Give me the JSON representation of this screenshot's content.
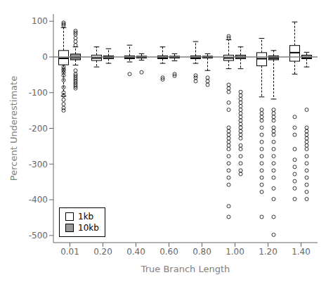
{
  "chart_data": {
    "type": "box",
    "xlabel": "True Branch Length",
    "ylabel": "Percent Underestimate",
    "categories": [
      "0.01",
      "0.20",
      "0.40",
      "0.60",
      "0.80",
      "1.00",
      "1.20",
      "1.40"
    ],
    "ylim": [
      -520,
      120
    ],
    "yticks": [
      100,
      0,
      -100,
      -200,
      -300,
      -400,
      -500
    ],
    "grid": false,
    "legend": "lower left",
    "reference_line": 0,
    "series": [
      {
        "name": "1kb",
        "color": "white",
        "values": [
          {
            "q1": -22,
            "median": -4,
            "q3": 18,
            "whislo": -110,
            "whishi": 82,
            "fliers_below": [
              -120,
              -132,
              -143,
              -150,
              -108,
              -100,
              -85,
              -65,
              -52,
              -44,
              -38,
              -34,
              -28
            ],
            "fliers_above": [
              88,
              92,
              96
            ]
          },
          {
            "q1": -10,
            "median": -3,
            "q3": 5,
            "whislo": -28,
            "whishi": 28,
            "fliers_below": [],
            "fliers_above": []
          },
          {
            "q1": -5,
            "median": -2,
            "q3": 3,
            "whislo": -14,
            "whishi": 33,
            "fliers_below": [
              -48
            ],
            "fliers_above": []
          },
          {
            "q1": -5,
            "median": -2,
            "q3": 3,
            "whislo": -18,
            "whishi": 28,
            "fliers_below": [
              -58,
              -63
            ],
            "fliers_above": []
          },
          {
            "q1": -5,
            "median": -2,
            "q3": 3,
            "whislo": -18,
            "whishi": 43,
            "fliers_below": [
              -52,
              -58,
              -68
            ],
            "fliers_above": []
          },
          {
            "q1": -10,
            "median": -3,
            "q3": 5,
            "whislo": -33,
            "whishi": 48,
            "fliers_below": [
              -78,
              -88,
              -98,
              -128,
              -148,
              -198,
              -208,
              -218,
              -228,
              -238,
              -248,
              -258,
              -278,
              -298,
              -318,
              -338,
              -358,
              -418,
              -448
            ],
            "fliers_above": [
              53,
              58
            ]
          },
          {
            "q1": -25,
            "median": -5,
            "q3": 12,
            "whislo": -112,
            "whishi": 52,
            "fliers_below": [
              -148,
              -158,
              -168,
              -178,
              -198,
              -218,
              -238,
              -258,
              -278,
              -298,
              -318,
              -338,
              -358,
              -378,
              -448
            ],
            "fliers_above": []
          },
          {
            "q1": -12,
            "median": 12,
            "q3": 32,
            "whislo": -48,
            "whishi": 98,
            "fliers_below": [
              -168,
              -198,
              -218,
              -258,
              -288,
              -308,
              -328,
              -348,
              -368,
              -398
            ],
            "fliers_above": []
          }
        ]
      },
      {
        "name": "10kb",
        "color": "#999999",
        "values": [
          {
            "q1": -8,
            "median": -1,
            "q3": 8,
            "whislo": -23,
            "whishi": 28,
            "fliers_below": [
              -38,
              -48,
              -53,
              -58,
              -63,
              -68,
              -73,
              -78,
              -83,
              -88
            ],
            "fliers_above": [
              33,
              43,
              53,
              63,
              68,
              73
            ]
          },
          {
            "q1": -5,
            "median": -1,
            "q3": 3,
            "whislo": -18,
            "whishi": 23,
            "fliers_below": [],
            "fliers_above": []
          },
          {
            "q1": -3,
            "median": -1,
            "q3": 2,
            "whislo": -9,
            "whishi": 9,
            "fliers_below": [
              -43
            ],
            "fliers_above": []
          },
          {
            "q1": -3,
            "median": -1,
            "q3": 2,
            "whislo": -11,
            "whishi": 9,
            "fliers_below": [
              -48,
              -53
            ],
            "fliers_above": []
          },
          {
            "q1": -3,
            "median": -1,
            "q3": 2,
            "whislo": -38,
            "whishi": 9,
            "fliers_below": [
              -58,
              -68,
              -78
            ],
            "fliers_above": []
          },
          {
            "q1": -5,
            "median": -1,
            "q3": 5,
            "whislo": -33,
            "whishi": 28,
            "fliers_below": [
              -98,
              -108,
              -118,
              -128,
              -138,
              -148,
              -158,
              -168,
              -178,
              -188,
              -198,
              -208,
              -218,
              -228,
              -248,
              -258,
              -278,
              -298,
              -318,
              -328
            ],
            "fliers_above": []
          },
          {
            "q1": -8,
            "median": -3,
            "q3": 3,
            "whislo": -118,
            "whishi": 18,
            "fliers_below": [
              -148,
              -158,
              -168,
              -178,
              -198,
              -208,
              -218,
              -238,
              -258,
              -278,
              -298,
              -318,
              -338,
              -368,
              -398,
              -448,
              -498
            ],
            "fliers_above": []
          },
          {
            "q1": -5,
            "median": -2,
            "q3": 5,
            "whislo": -28,
            "whishi": 13,
            "fliers_below": [
              -148,
              -198,
              -208,
              -218,
              -228,
              -238,
              -248,
              -258,
              -278,
              -298,
              -318,
              -338,
              -358,
              -378,
              -398
            ],
            "fliers_above": []
          }
        ]
      }
    ]
  }
}
